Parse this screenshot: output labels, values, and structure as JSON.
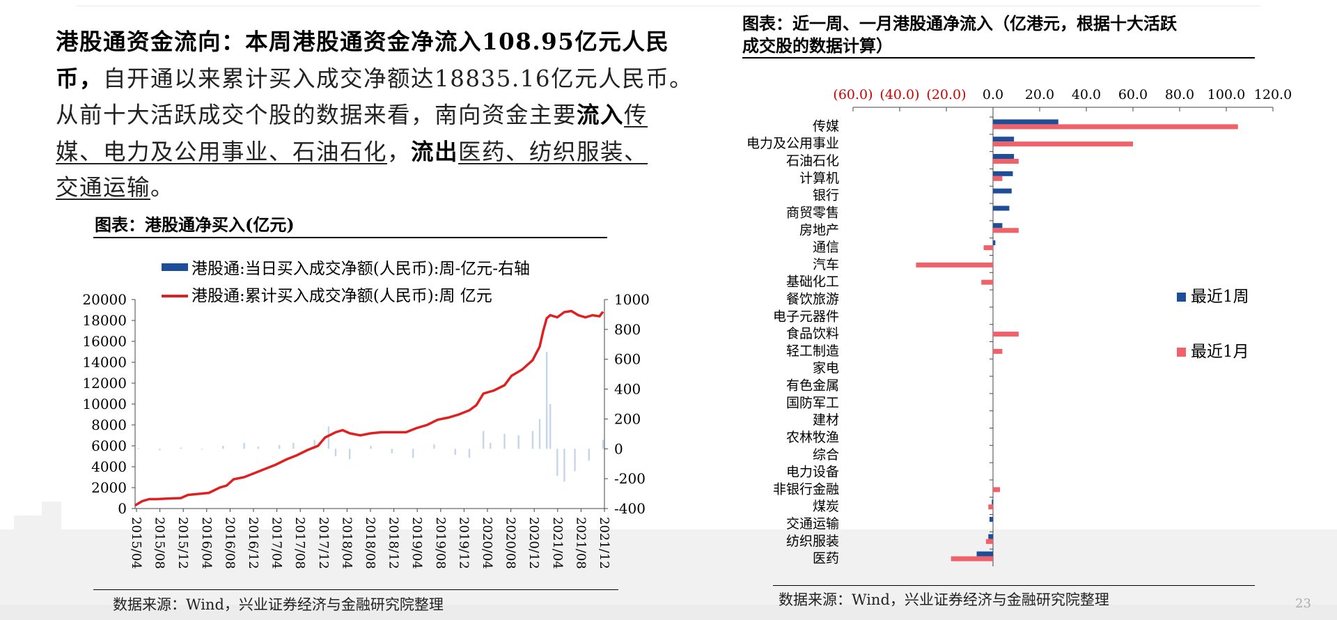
{
  "paragraph": {
    "l1_bold": "港股通资金流向：本周港股通资金净流入108.95亿元人民",
    "l2_bold": "币，",
    "l2_text": "自开通以来累计买入成交净额达18835.16亿元人民币。",
    "l3_text": "从前十大活跃成交个股的数据来看，南向资金主要",
    "l3_bold": "流入",
    "l3_under": "传",
    "l4_under": "媒、电力及公用事业、石油石化",
    "l4_text": "，",
    "l4_bold": "流出",
    "l4_under2": "医药、纺织服装、",
    "l5_under": "交通运输",
    "l5_text": "。"
  },
  "left_chart": {
    "title": "图表：港股通净买入(亿元)",
    "source": "数据来源：Wind，兴业证券经济与金融研究院整理"
  },
  "right_chart": {
    "title_line1": "图表：近一周、一月港股通净流入（亿港元，根据十大活跃",
    "title_line2": "成交股的数据计算）",
    "source": "数据来源：Wind，兴业证券经济与金融研究院整理"
  },
  "page_number": "23",
  "colors": {
    "blue": "#1f4e99",
    "red": "#e02020",
    "pink": "#f0616a",
    "neg_tick": "#cc0000",
    "light_bar": "#c5d5ea"
  },
  "chart_data": [
    {
      "type": "line",
      "legend_position": "top",
      "x_ticks": [
        "2015/04",
        "2015/08",
        "2015/12",
        "2016/04",
        "2016/08",
        "2016/12",
        "2017/04",
        "2017/08",
        "2017/12",
        "2018/04",
        "2018/08",
        "2018/12",
        "2019/04",
        "2019/08",
        "2019/12",
        "2020/04",
        "2020/08",
        "2020/12",
        "2021/04",
        "2021/08",
        "2021/12"
      ],
      "y_left": {
        "ticks": [
          "20000",
          "18000",
          "16000",
          "14000",
          "12000",
          "10000",
          "8000",
          "6000",
          "4000",
          "2000",
          "0"
        ],
        "range": [
          0,
          20000
        ]
      },
      "y_right": {
        "ticks": [
          "1000",
          "800",
          "600",
          "400",
          "200",
          "0",
          "-200",
          "-400"
        ],
        "range": [
          -400,
          1000
        ]
      },
      "series": [
        {
          "name": "港股通:当日买入成交净额(人民币):周-亿元-右轴",
          "type": "bar",
          "axis": "right",
          "x": [
            2015.3,
            2015.6,
            2015.9,
            2016.2,
            2016.5,
            2016.8,
            2017.0,
            2017.3,
            2017.5,
            2017.8,
            2018.0,
            2018.1,
            2018.3,
            2018.6,
            2018.9,
            2019.2,
            2019.5,
            2019.8,
            2020.0,
            2020.2,
            2020.3,
            2020.5,
            2020.7,
            2020.9,
            2021.0,
            2021.1,
            2021.15,
            2021.25,
            2021.35,
            2021.5,
            2021.7,
            2021.9
          ],
          "values": [
            5,
            -10,
            8,
            -5,
            20,
            40,
            15,
            25,
            40,
            60,
            150,
            -50,
            -70,
            20,
            -30,
            -60,
            30,
            -40,
            -60,
            120,
            40,
            100,
            90,
            120,
            200,
            650,
            300,
            -180,
            -220,
            -150,
            -80,
            60
          ]
        },
        {
          "name": "港股通:累计买入成交净额(人民币):周 亿元",
          "type": "line",
          "axis": "left",
          "x": [
            2015.25,
            2015.35,
            2015.45,
            2015.55,
            2015.7,
            2015.9,
            2016.0,
            2016.15,
            2016.3,
            2016.45,
            2016.55,
            2016.65,
            2016.8,
            2016.95,
            2017.1,
            2017.25,
            2017.4,
            2017.55,
            2017.7,
            2017.85,
            2017.95,
            2018.1,
            2018.2,
            2018.3,
            2018.45,
            2018.6,
            2018.75,
            2018.9,
            2019.1,
            2019.25,
            2019.4,
            2019.55,
            2019.7,
            2019.85,
            2020.0,
            2020.1,
            2020.2,
            2020.35,
            2020.5,
            2020.6,
            2020.75,
            2020.9,
            2021.0,
            2021.05,
            2021.1,
            2021.15,
            2021.25,
            2021.35,
            2021.45,
            2021.55,
            2021.65,
            2021.75,
            2021.85,
            2021.9
          ],
          "values": [
            300,
            700,
            900,
            900,
            950,
            1000,
            1300,
            1400,
            1500,
            2000,
            2200,
            2800,
            3000,
            3400,
            3800,
            4200,
            4700,
            5100,
            5600,
            6000,
            6800,
            7300,
            7500,
            7200,
            7000,
            7200,
            7300,
            7300,
            7300,
            7700,
            8000,
            8500,
            8700,
            9000,
            9400,
            9900,
            11000,
            11300,
            11800,
            12700,
            13300,
            14200,
            15500,
            17000,
            18200,
            18500,
            18300,
            18800,
            18900,
            18500,
            18300,
            18500,
            18400,
            18835
          ]
        }
      ]
    },
    {
      "type": "bar",
      "orientation": "horizontal",
      "x_ticks": [
        "(60.0)",
        "(40.0)",
        "(20.0)",
        "0.0",
        "20.0",
        "40.0",
        "60.0",
        "80.0",
        "100.0",
        "120.0"
      ],
      "x_range": [
        -60,
        120
      ],
      "legend_position": "right",
      "categories": [
        "传媒",
        "电力及公用事业",
        "石油石化",
        "计算机",
        "银行",
        "商贸零售",
        "房地产",
        "通信",
        "汽车",
        "基础化工",
        "餐饮旅游",
        "电子元器件",
        "食品饮料",
        "轻工制造",
        "家电",
        "有色金属",
        "国防军工",
        "建材",
        "农林牧渔",
        "综合",
        "电力设备",
        "非银行金融",
        "煤炭",
        "交通运输",
        "纺织服装",
        "医药"
      ],
      "series": [
        {
          "name": "最近1周",
          "values": [
            28,
            9,
            9,
            8.5,
            8,
            7,
            4,
            1,
            0,
            0,
            0,
            0,
            0,
            0,
            0,
            0,
            0,
            0,
            0,
            0,
            0,
            0,
            -0.5,
            -1.5,
            -2,
            -7
          ]
        },
        {
          "name": "最近1月",
          "values": [
            105,
            60,
            11,
            4,
            0,
            0,
            11,
            -4,
            -33,
            -5,
            0,
            0,
            11,
            4,
            0,
            0,
            0,
            0,
            0,
            0,
            0,
            3,
            -2,
            0,
            -3,
            -18
          ]
        }
      ]
    }
  ]
}
